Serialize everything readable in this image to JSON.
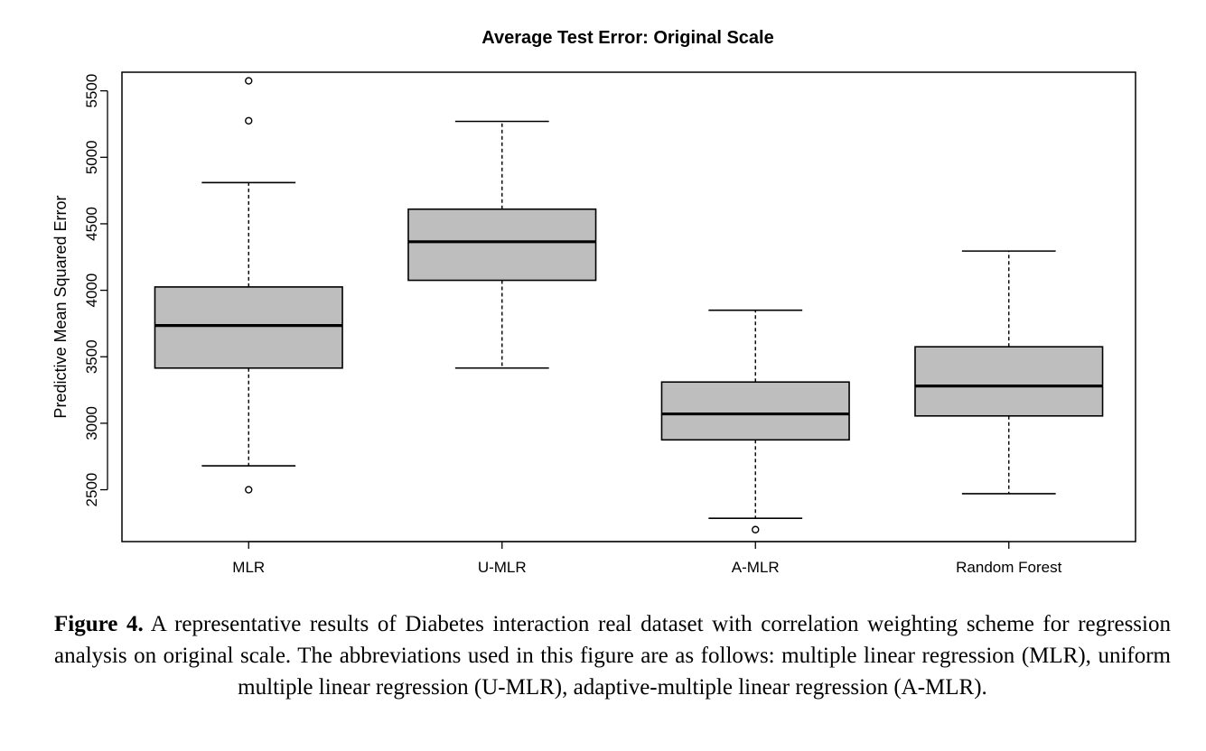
{
  "chart_data": {
    "type": "boxplot",
    "title": "Average Test Error: Original Scale",
    "xlabel": "",
    "ylabel": "Predictive Mean Squared Error",
    "ylim": [
      2110,
      5640
    ],
    "yticks": [
      2500,
      3000,
      3500,
      4000,
      4500,
      5000,
      5500
    ],
    "grid": false,
    "categories": [
      "MLR",
      "U-MLR",
      "A-MLR",
      "Random Forest"
    ],
    "boxes": [
      {
        "category": "MLR",
        "whisker_low": 2680,
        "q1": 3415,
        "median": 3735,
        "q3": 4025,
        "whisker_high": 4810,
        "outliers": [
          2500,
          5275,
          5575
        ]
      },
      {
        "category": "U-MLR",
        "whisker_low": 3415,
        "q1": 4075,
        "median": 4365,
        "q3": 4610,
        "whisker_high": 5270,
        "outliers": []
      },
      {
        "category": "A-MLR",
        "whisker_low": 2285,
        "q1": 2875,
        "median": 3070,
        "q3": 3310,
        "whisker_high": 3850,
        "outliers": [
          2200
        ]
      },
      {
        "category": "Random Forest",
        "whisker_low": 2470,
        "q1": 3055,
        "median": 3280,
        "q3": 3575,
        "whisker_high": 4295,
        "outliers": []
      }
    ],
    "box_color": "#bebebe"
  },
  "caption": {
    "label": "Figure 4.",
    "text": "A representative results of Diabetes interaction real dataset with correlation weighting scheme for regression analysis on original scale. The abbreviations used in this figure are as follows: multiple linear regression (MLR), uniform multiple linear regression (U-MLR), adaptive-multiple linear regression (A-MLR)."
  }
}
